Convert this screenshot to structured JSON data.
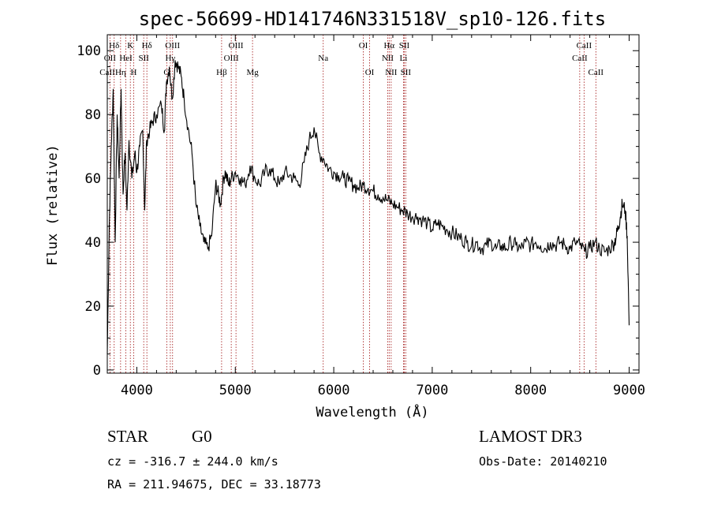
{
  "chart_data": {
    "type": "line",
    "title": "spec-56699-HD141746N331518V_sp10-126.fits",
    "xlabel": "Wavelength (Å)",
    "ylabel": "Flux (relative)",
    "xlim": [
      3700,
      9100
    ],
    "ylim": [
      -1,
      105
    ],
    "xticks": [
      4000,
      5000,
      6000,
      7000,
      8000,
      9000
    ],
    "yticks": [
      0,
      20,
      40,
      60,
      80,
      100
    ],
    "series": [
      {
        "color": "#000000",
        "x": [
          3700,
          3720,
          3740,
          3760,
          3780,
          3800,
          3820,
          3840,
          3860,
          3880,
          3900,
          3920,
          3950,
          3980,
          4000,
          4030,
          4060,
          4080,
          4100,
          4130,
          4160,
          4200,
          4250,
          4280,
          4300,
          4330,
          4360,
          4390,
          4420,
          4450,
          4480,
          4520,
          4560,
          4600,
          4640,
          4680,
          4720,
          4760,
          4800,
          4820,
          4850,
          4880,
          4900,
          4930,
          4960,
          5000,
          5050,
          5100,
          5150,
          5200,
          5250,
          5300,
          5350,
          5400,
          5450,
          5500,
          5550,
          5600,
          5650,
          5700,
          5750,
          5800,
          5850,
          5900,
          5950,
          6000,
          6050,
          6100,
          6150,
          6200,
          6250,
          6300,
          6350,
          6400,
          6450,
          6500,
          6550,
          6600,
          6650,
          6700,
          6750,
          6800,
          6850,
          6900,
          6950,
          7000,
          7050,
          7100,
          7150,
          7200,
          7250,
          7300,
          7350,
          7400,
          7450,
          7500,
          7550,
          7600,
          7650,
          7700,
          7750,
          7800,
          7850,
          7900,
          7950,
          8000,
          8050,
          8100,
          8150,
          8200,
          8250,
          8300,
          8350,
          8400,
          8450,
          8500,
          8550,
          8600,
          8650,
          8700,
          8750,
          8800,
          8850,
          8870,
          8890,
          8910,
          8930,
          8960,
          8980,
          9000
        ],
        "y": [
          5,
          45,
          70,
          88,
          40,
          80,
          60,
          88,
          55,
          68,
          50,
          72,
          60,
          68,
          62,
          70,
          75,
          50,
          72,
          75,
          78,
          80,
          83,
          75,
          90,
          95,
          85,
          97,
          95,
          92,
          85,
          76,
          68,
          52,
          45,
          40,
          38,
          42,
          58,
          56,
          52,
          60,
          62,
          58,
          60,
          62,
          60,
          58,
          64,
          60,
          58,
          62,
          63,
          60,
          58,
          62,
          61,
          60,
          58,
          65,
          72,
          76,
          68,
          66,
          63,
          62,
          61,
          60,
          59,
          58,
          57,
          58,
          57,
          56,
          55,
          54,
          53,
          52,
          51,
          50,
          49,
          48,
          48,
          47,
          46,
          44,
          46,
          45,
          44,
          43,
          42,
          41,
          40,
          39,
          40,
          38,
          39,
          40,
          38,
          39,
          38,
          40,
          39,
          38,
          40,
          39,
          40,
          39,
          38,
          40,
          39,
          40,
          39,
          38,
          40,
          39,
          37,
          38,
          40,
          38,
          37,
          38,
          40,
          42,
          45,
          48,
          52,
          50,
          42,
          14
        ]
      }
    ],
    "lines": [
      {
        "name": "Hδ",
        "x": 3770,
        "row": 1
      },
      {
        "name": "OII",
        "x": 3727,
        "row": 2
      },
      {
        "name": "CaII",
        "x": 3700,
        "row": 3
      },
      {
        "name": "K",
        "x": 3934,
        "row": 1
      },
      {
        "name": "HeI",
        "x": 3889,
        "row": 2
      },
      {
        "name": "Hη",
        "x": 3835,
        "row": 3
      },
      {
        "name": "H",
        "x": 3968,
        "row": 3
      },
      {
        "name": "SII",
        "x": 4070,
        "row": 2
      },
      {
        "name": "Hδ",
        "x": 4102,
        "row": 1
      },
      {
        "name": "OIII",
        "x": 4363,
        "row": 1
      },
      {
        "name": "Hγ",
        "x": 4340,
        "row": 2
      },
      {
        "name": "G",
        "x": 4304,
        "row": 3
      },
      {
        "name": "Hβ",
        "x": 4861,
        "row": 3
      },
      {
        "name": "OIII",
        "x": 5007,
        "row": 1
      },
      {
        "name": "OIII",
        "x": 4959,
        "row": 2
      },
      {
        "name": "Mg",
        "x": 5175,
        "row": 3
      },
      {
        "name": "Na",
        "x": 5893,
        "row": 2
      },
      {
        "name": "OI",
        "x": 6300,
        "row": 1
      },
      {
        "name": "OI",
        "x": 6364,
        "row": 3
      },
      {
        "name": "Hα",
        "x": 6563,
        "row": 1
      },
      {
        "name": "NII",
        "x": 6548,
        "row": 2
      },
      {
        "name": "NII",
        "x": 6583,
        "row": 3
      },
      {
        "name": "SII",
        "x": 6716,
        "row": 1
      },
      {
        "name": "Li",
        "x": 6708,
        "row": 2
      },
      {
        "name": "SII",
        "x": 6731,
        "row": 3
      },
      {
        "name": "CaII",
        "x": 8542,
        "row": 1
      },
      {
        "name": "CaII",
        "x": 8498,
        "row": 2
      },
      {
        "name": "CaII",
        "x": 8662,
        "row": 3
      }
    ]
  },
  "info": {
    "class": "STAR",
    "subclass": "G0",
    "cz": "cz = -316.7 ± 244.0 km/s",
    "radec": "RA = 211.94675, DEC =  33.18773",
    "survey": "LAMOST DR3",
    "obsdate": "Obs-Date: 20140210"
  }
}
